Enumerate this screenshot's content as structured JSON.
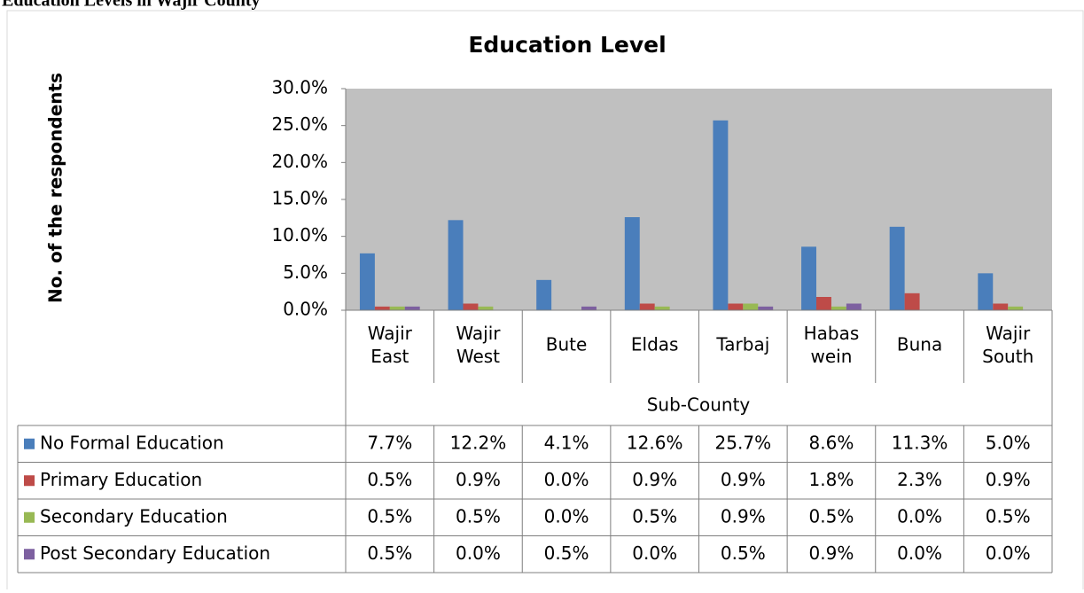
{
  "heading": "Education Levels in Wajir County",
  "chart_data": {
    "type": "bar",
    "title": "Education Level",
    "y_label": "No. of the respondents",
    "x_label": "Sub-County",
    "categories": [
      "Wajir East",
      "Wajir West",
      "Bute",
      "Eldas",
      "Tarbaj",
      "Habas wein",
      "Buna",
      "Wajir South"
    ],
    "series": [
      {
        "name": "No Formal Education",
        "color": "#4a7ebb",
        "values": [
          7.7,
          12.2,
          4.1,
          12.6,
          25.7,
          8.6,
          11.3,
          5.0
        ],
        "value_labels": [
          "7.7%",
          "12.2%",
          "4.1%",
          "12.6%",
          "25.7%",
          "8.6%",
          "11.3%",
          "5.0%"
        ]
      },
      {
        "name": "Primary Education",
        "color": "#be4b48",
        "values": [
          0.5,
          0.9,
          0.0,
          0.9,
          0.9,
          1.8,
          2.3,
          0.9
        ],
        "value_labels": [
          "0.5%",
          "0.9%",
          "0.0%",
          "0.9%",
          "0.9%",
          "1.8%",
          "2.3%",
          "0.9%"
        ]
      },
      {
        "name": "Secondary Education",
        "color": "#98b954",
        "values": [
          0.5,
          0.5,
          0.0,
          0.5,
          0.9,
          0.5,
          0.0,
          0.5
        ],
        "value_labels": [
          "0.5%",
          "0.5%",
          "0.0%",
          "0.5%",
          "0.9%",
          "0.5%",
          "0.0%",
          "0.5%"
        ]
      },
      {
        "name": "Post Secondary Education",
        "color": "#7d60a0",
        "values": [
          0.5,
          0.0,
          0.5,
          0.0,
          0.5,
          0.9,
          0.0,
          0.0
        ],
        "value_labels": [
          "0.5%",
          "0.0%",
          "0.5%",
          "0.0%",
          "0.5%",
          "0.9%",
          "0.0%",
          "0.0%"
        ]
      }
    ],
    "ylim": [
      0,
      30
    ],
    "yticks": [
      {
        "value": 0,
        "label": "0.0%"
      },
      {
        "value": 5,
        "label": "5.0%"
      },
      {
        "value": 10,
        "label": "10.0%"
      },
      {
        "value": 15,
        "label": "15.0%"
      },
      {
        "value": 20,
        "label": "20.0%"
      },
      {
        "value": 25,
        "label": "25.0%"
      },
      {
        "value": 30,
        "label": "30.0%"
      }
    ],
    "grid": false,
    "plot_background": "#c0c0c0"
  }
}
